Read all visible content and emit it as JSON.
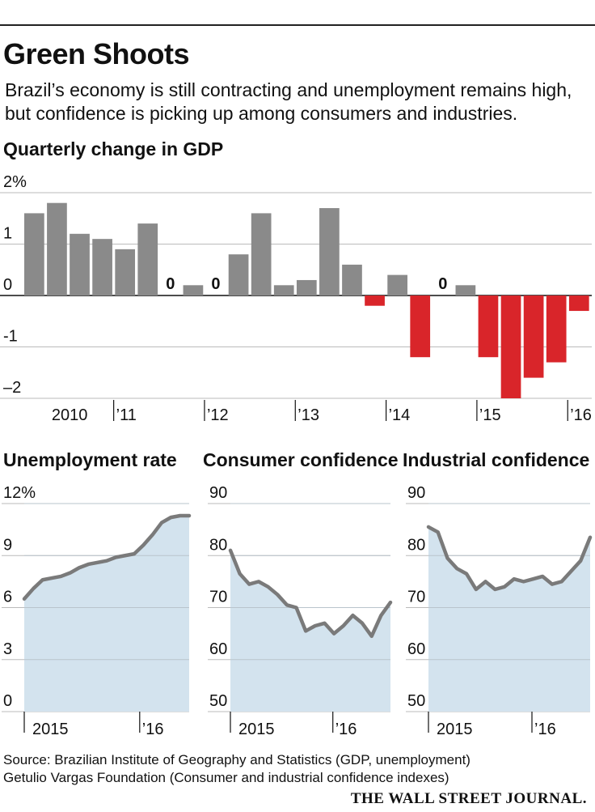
{
  "header": {
    "title": "Green Shoots",
    "subtitle": "Brazil’s economy is still contracting and unemployment remains high, but confidence is picking up among consumers and industries."
  },
  "colors": {
    "positive_bar": "#8a8a8a",
    "negative_bar": "#d9252a",
    "area_fill": "#d3e3ee",
    "line": "#7a7a7a",
    "grid": "#bbbbbb"
  },
  "chart_data": [
    {
      "id": "gdp",
      "type": "bar",
      "title": "Quarterly change in GDP",
      "unit": "%",
      "ylim": [
        -2,
        2
      ],
      "y_ticks": [
        {
          "value": 2,
          "label": "2%"
        },
        {
          "value": 1,
          "label": "1"
        },
        {
          "value": 0,
          "label": "0"
        },
        {
          "value": -1,
          "label": "-1"
        },
        {
          "value": -2,
          "label": "–2"
        }
      ],
      "x_tick_labels": [
        "2010",
        "’11",
        "’12",
        "’13",
        "’14",
        "’15",
        "’16"
      ],
      "values": [
        1.6,
        1.8,
        1.2,
        1.1,
        0.9,
        1.4,
        0.0,
        0.2,
        0.0,
        0.8,
        1.6,
        0.2,
        0.3,
        1.7,
        0.6,
        -0.2,
        0.4,
        -1.2,
        0.0,
        0.2,
        -1.2,
        -2.0,
        -1.6,
        -1.3,
        -0.3
      ],
      "zero_labels": [
        {
          "index": 6,
          "label": "0"
        },
        {
          "index": 8,
          "label": "0"
        },
        {
          "index": 18,
          "label": "0"
        }
      ]
    },
    {
      "id": "unemployment",
      "type": "area",
      "title": "Unemployment rate",
      "ylim": [
        0,
        12
      ],
      "y_ticks": [
        {
          "value": 12,
          "label": "12%"
        },
        {
          "value": 9,
          "label": "9"
        },
        {
          "value": 6,
          "label": "6"
        },
        {
          "value": 3,
          "label": "3"
        },
        {
          "value": 0,
          "label": "0"
        }
      ],
      "x_tick_labels": [
        "2015",
        "’16"
      ],
      "values": [
        6.5,
        7.1,
        7.6,
        7.7,
        7.8,
        8.0,
        8.3,
        8.5,
        8.6,
        8.7,
        8.9,
        9.0,
        9.1,
        9.6,
        10.2,
        10.9,
        11.2,
        11.3,
        11.3
      ]
    },
    {
      "id": "consumer",
      "type": "area",
      "title": "Consumer confidence",
      "ylim": [
        50,
        90
      ],
      "y_ticks": [
        {
          "value": 90,
          "label": "90"
        },
        {
          "value": 80,
          "label": "80"
        },
        {
          "value": 70,
          "label": "70"
        },
        {
          "value": 60,
          "label": "60"
        },
        {
          "value": 50,
          "label": "50"
        }
      ],
      "x_tick_labels": [
        "2015",
        "’16"
      ],
      "values": [
        81,
        76.5,
        74.5,
        75,
        74,
        72.5,
        70.5,
        70,
        65.5,
        66.5,
        67,
        65,
        66.5,
        68.5,
        67,
        64.5,
        68.5,
        71
      ]
    },
    {
      "id": "industrial",
      "type": "area",
      "title": "Industrial confidence",
      "ylim": [
        50,
        90
      ],
      "y_ticks": [
        {
          "value": 90,
          "label": "90"
        },
        {
          "value": 80,
          "label": "80"
        },
        {
          "value": 70,
          "label": "70"
        },
        {
          "value": 60,
          "label": "60"
        },
        {
          "value": 50,
          "label": "50"
        }
      ],
      "x_tick_labels": [
        "2015",
        "’16"
      ],
      "values": [
        85.5,
        84.5,
        79.5,
        77.5,
        76.5,
        73.5,
        75,
        73.5,
        74,
        75.5,
        75,
        75.5,
        76,
        74.5,
        75,
        77,
        79,
        83.5
      ]
    }
  ],
  "footer": {
    "source_line1": "Source: Brazilian Institute of Geography and Statistics (GDP, unemployment)",
    "source_line2": "Getulio Vargas Foundation (Consumer and industrial confidence indexes)",
    "logo": "THE WALL STREET JOURNAL."
  }
}
